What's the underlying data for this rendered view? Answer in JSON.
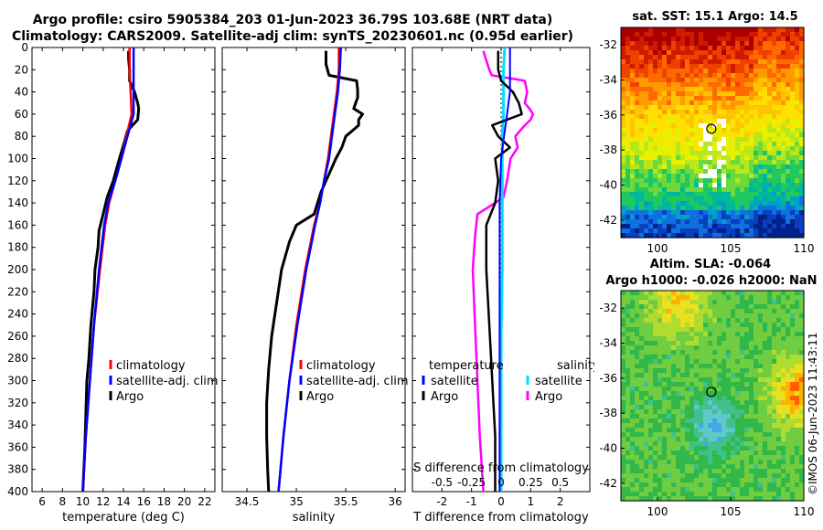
{
  "header": {
    "title_line1": "Argo profile: csiro 5905384_203 01-Jun-2023 36.79S 103.68E (NRT data)",
    "title_line2": "Climatology: CARS2009. Satellite-adj clim: synTS_20230601.nc (0.95d earlier)"
  },
  "credit": "©IMOS 06-Jun-2023 11:43:11",
  "colors": {
    "climatology": "#ff0000",
    "satellite": "#0000ff",
    "argo": "#000000",
    "salinity_satellite": "#00e0ff",
    "salinity_argo": "#ff00ff"
  },
  "maps": {
    "sst_title": "sat. SST: 15.1 Argo: 14.5",
    "sla_title_line1": "Altim. SLA: -0.064",
    "sla_title_line2": "Argo h1000: -0.026 h2000: NaN",
    "y_ticks": [
      "-32",
      "-34",
      "-36",
      "-38",
      "-40",
      "-42"
    ],
    "x_ticks": [
      "100",
      "105",
      "110"
    ]
  },
  "chart_data": [
    {
      "type": "line",
      "title": "",
      "xlabel": "temperature (deg C)",
      "ylabel": "",
      "xlim": [
        5,
        23
      ],
      "ylim": [
        400,
        0
      ],
      "x_ticks": [
        6,
        8,
        10,
        12,
        14,
        16,
        18,
        20,
        22
      ],
      "y_ticks": [
        0,
        20,
        40,
        60,
        80,
        100,
        120,
        140,
        160,
        180,
        200,
        220,
        240,
        260,
        280,
        300,
        320,
        340,
        360,
        380,
        400
      ],
      "legend": [
        "climatology",
        "satellite-adj. clim",
        "Argo"
      ],
      "series": [
        {
          "name": "climatology",
          "depth": [
            0,
            20,
            40,
            60,
            80,
            100,
            120,
            140,
            160,
            200,
            250,
            300,
            350,
            400
          ],
          "values": [
            14.6,
            14.6,
            14.7,
            14.8,
            14.3,
            13.8,
            13.2,
            12.6,
            12.2,
            11.7,
            11.1,
            10.7,
            10.3,
            10.0
          ]
        },
        {
          "name": "satellite-adj. clim",
          "depth": [
            0,
            20,
            40,
            60,
            80,
            100,
            120,
            140,
            160,
            200,
            250,
            300,
            350,
            400
          ],
          "values": [
            15.0,
            15.0,
            15.0,
            15.0,
            14.4,
            13.8,
            13.2,
            12.5,
            12.1,
            11.6,
            11.1,
            10.7,
            10.3,
            10.0
          ]
        },
        {
          "name": "Argo",
          "depth": [
            3,
            10,
            20,
            30,
            40,
            50,
            55,
            65,
            75,
            85,
            100,
            120,
            135,
            150,
            165,
            180,
            200,
            220,
            250,
            280,
            300,
            330,
            360,
            400
          ],
          "values": [
            14.5,
            14.5,
            14.6,
            14.6,
            15.1,
            15.4,
            15.5,
            15.4,
            14.4,
            14.1,
            13.6,
            13.0,
            12.4,
            12.0,
            11.6,
            11.5,
            11.2,
            11.1,
            10.8,
            10.6,
            10.4,
            10.3,
            10.2,
            10.0
          ]
        }
      ]
    },
    {
      "type": "line",
      "title": "",
      "xlabel": "salinity",
      "ylabel": "",
      "xlim": [
        34.25,
        36.1
      ],
      "ylim": [
        400,
        0
      ],
      "x_ticks": [
        34.5,
        35,
        35.5,
        36
      ],
      "legend": [
        "climatology",
        "satellite-adj. clim",
        "Argo"
      ],
      "series": [
        {
          "name": "climatology",
          "depth": [
            0,
            20,
            40,
            60,
            80,
            100,
            120,
            140,
            160,
            200,
            250,
            300,
            350,
            400
          ],
          "values": [
            35.43,
            35.43,
            35.41,
            35.38,
            35.35,
            35.32,
            35.28,
            35.24,
            35.18,
            35.09,
            35.0,
            34.93,
            34.87,
            34.82
          ]
        },
        {
          "name": "satellite-adj. clim",
          "depth": [
            0,
            20,
            40,
            60,
            80,
            100,
            120,
            140,
            160,
            200,
            250,
            300,
            350,
            400
          ],
          "values": [
            35.45,
            35.44,
            35.42,
            35.39,
            35.36,
            35.33,
            35.28,
            35.24,
            35.19,
            35.1,
            35.01,
            34.93,
            34.87,
            34.82
          ]
        },
        {
          "name": "Argo",
          "depth": [
            3,
            10,
            15,
            25,
            30,
            38,
            45,
            55,
            60,
            65,
            70,
            80,
            90,
            100,
            110,
            120,
            130,
            150,
            160,
            175,
            200,
            230,
            260,
            290,
            320,
            350,
            380,
            400
          ],
          "values": [
            35.3,
            35.3,
            35.3,
            35.33,
            35.61,
            35.62,
            35.62,
            35.58,
            35.67,
            35.63,
            35.63,
            35.5,
            35.46,
            35.4,
            35.35,
            35.3,
            35.25,
            35.18,
            35.0,
            34.93,
            34.85,
            34.8,
            34.75,
            34.72,
            34.7,
            34.7,
            34.71,
            34.72
          ]
        }
      ]
    },
    {
      "type": "line",
      "title": "",
      "xlabel": "T difference from climatology",
      "xlabel_top": "S difference from climatology",
      "ylabel": "",
      "xlim": [
        -3,
        3
      ],
      "ylim": [
        400,
        0
      ],
      "x_ticks": [
        -2,
        -1,
        0,
        1,
        2
      ],
      "s_ticks": [
        "-0.5",
        "-0.25",
        "0",
        "0.25",
        "0.5"
      ],
      "legend_temperature_title": "temperature",
      "legend_salinity_title": "salinity",
      "legend_labels": [
        "satellite",
        "Argo",
        "satellite",
        "Argo"
      ],
      "series": [
        {
          "name": "temperature satellite",
          "depth": [
            0,
            20,
            40,
            60,
            80,
            100,
            140,
            200,
            260,
            300,
            340,
            400
          ],
          "values": [
            0.3,
            0.3,
            0.3,
            0.2,
            0.1,
            0.0,
            -0.05,
            -0.05,
            -0.05,
            -0.05,
            -0.05,
            -0.05
          ]
        },
        {
          "name": "temperature Argo",
          "depth": [
            3,
            10,
            20,
            30,
            40,
            50,
            60,
            70,
            80,
            90,
            100,
            120,
            140,
            160,
            200,
            250,
            300,
            350,
            400
          ],
          "values": [
            -0.1,
            -0.1,
            -0.1,
            0.0,
            0.4,
            0.6,
            0.7,
            -0.3,
            -0.1,
            0.3,
            -0.2,
            -0.1,
            -0.2,
            -0.5,
            -0.5,
            -0.4,
            -0.3,
            -0.2,
            -0.2
          ]
        },
        {
          "name": "salinity satellite",
          "depth": [
            0,
            20,
            40,
            60,
            80,
            100,
            140,
            200,
            260,
            300,
            340,
            400
          ],
          "values": [
            0.03,
            0.02,
            0.02,
            0.02,
            0.01,
            0.01,
            0.01,
            0.01,
            0.0,
            0.0,
            0.0,
            0.0
          ]
        },
        {
          "name": "salinity Argo",
          "depth": [
            3,
            10,
            20,
            25,
            30,
            35,
            40,
            50,
            55,
            60,
            65,
            70,
            80,
            90,
            100,
            120,
            135,
            140,
            150,
            170,
            200,
            250,
            300,
            350,
            400
          ],
          "values": [
            -0.15,
            -0.13,
            -0.1,
            -0.08,
            0.2,
            0.21,
            0.22,
            0.2,
            0.24,
            0.27,
            0.25,
            0.2,
            0.12,
            0.14,
            0.08,
            0.05,
            0.02,
            -0.05,
            -0.2,
            -0.22,
            -0.24,
            -0.22,
            -0.2,
            -0.18,
            -0.15
          ]
        }
      ]
    }
  ]
}
